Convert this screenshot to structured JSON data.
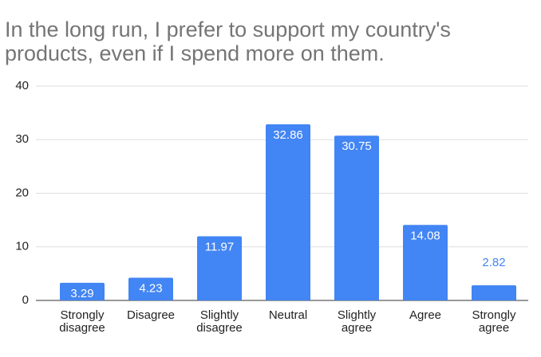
{
  "chart_data": {
    "type": "bar",
    "title": "In the long run, I prefer to support my country's products, even if I spend more on them.",
    "categories": [
      "Strongly disagree",
      "Disagree",
      "Slightly disagree",
      "Neutral",
      "Slightly agree",
      "Agree",
      "Strongly agree"
    ],
    "values": [
      3.29,
      4.23,
      11.97,
      32.86,
      30.75,
      14.08,
      2.82
    ],
    "color": "#4285f4",
    "ylim": [
      0,
      40
    ],
    "yticks": [
      0,
      10,
      20,
      30,
      40
    ],
    "grid": true
  }
}
